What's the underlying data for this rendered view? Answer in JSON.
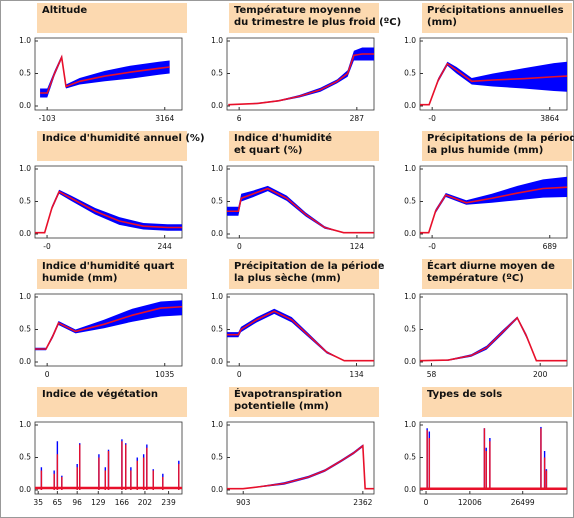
{
  "chart_data": [
    {
      "type": "line",
      "title": [
        "Altitude"
      ],
      "x": [
        -300,
        -100,
        100,
        300,
        420,
        800,
        1500,
        2200,
        3000,
        3300
      ],
      "values": [
        0.2,
        0.2,
        0.5,
        0.75,
        0.3,
        0.38,
        0.46,
        0.52,
        0.58,
        0.6
      ],
      "band_low": [
        0.13,
        0.13,
        0.46,
        0.72,
        0.27,
        0.33,
        0.38,
        0.42,
        0.48,
        0.5
      ],
      "band_high": [
        0.27,
        0.27,
        0.54,
        0.78,
        0.33,
        0.43,
        0.54,
        0.62,
        0.68,
        0.7
      ],
      "xlim": [
        -441,
        3643
      ],
      "xticks": [
        -103,
        3164
      ],
      "ylim": [
        0,
        1
      ],
      "yticks": [
        {
          "value": 0,
          "label": "0.0"
        },
        {
          "value": 0.5,
          "label": "0.5"
        },
        {
          "value": 1,
          "label": "1.0"
        }
      ],
      "color": "#e8102a",
      "band_color": "#0000ff"
    },
    {
      "type": "line",
      "title": [
        "Température moyenne",
        "du trimestre le plus froid (ºC)"
      ],
      "x": [
        -20,
        50,
        100,
        150,
        200,
        240,
        265,
        280,
        300,
        328
      ],
      "values": [
        0.02,
        0.04,
        0.08,
        0.15,
        0.25,
        0.38,
        0.5,
        0.78,
        0.8,
        0.8
      ],
      "band_low": [
        0.02,
        0.03,
        0.07,
        0.13,
        0.22,
        0.35,
        0.45,
        0.7,
        0.7,
        0.7
      ],
      "band_high": [
        0.02,
        0.05,
        0.09,
        0.17,
        0.28,
        0.41,
        0.55,
        0.85,
        0.9,
        0.9
      ],
      "xlim": [
        -23,
        328
      ],
      "xticks": [
        6,
        287
      ],
      "ylim": [
        0,
        1
      ],
      "yticks": [
        {
          "value": 0,
          "label": "0.0"
        },
        {
          "value": 0.5,
          "label": "0.5"
        },
        {
          "value": 1,
          "label": "1.0"
        }
      ],
      "color": "#e8102a",
      "band_color": "#0000ff"
    },
    {
      "type": "line",
      "title": [
        "Précipitations annuelles",
        "(mm)"
      ],
      "x": [
        -400,
        -100,
        200,
        500,
        800,
        1300,
        2000,
        3000,
        4000,
        4430
      ],
      "values": [
        0.02,
        0.02,
        0.4,
        0.65,
        0.55,
        0.38,
        0.4,
        0.42,
        0.45,
        0.46
      ],
      "band_low": [
        0.02,
        0.02,
        0.37,
        0.62,
        0.5,
        0.33,
        0.3,
        0.27,
        0.23,
        0.22
      ],
      "band_high": [
        0.02,
        0.02,
        0.43,
        0.68,
        0.6,
        0.43,
        0.5,
        0.58,
        0.66,
        0.68
      ],
      "xlim": [
        -400,
        4430
      ],
      "xticks": [
        {
          "value": 0,
          "label": "-0"
        },
        3864
      ],
      "ylim": [
        0,
        1
      ],
      "yticks": [
        {
          "value": 0,
          "label": "0.0"
        },
        {
          "value": 0.5,
          "label": "0.5"
        },
        {
          "value": 1,
          "label": "1.0"
        }
      ],
      "color": "#e8102a",
      "band_color": "#0000ff"
    },
    {
      "type": "line",
      "title": [
        "Indice d'humidité annuel (%)"
      ],
      "x": [
        -25,
        -5,
        10,
        25,
        50,
        100,
        150,
        200,
        250,
        280
      ],
      "values": [
        0.02,
        0.02,
        0.4,
        0.65,
        0.55,
        0.35,
        0.2,
        0.12,
        0.1,
        0.1
      ],
      "band_low": [
        0.02,
        0.02,
        0.37,
        0.62,
        0.51,
        0.3,
        0.14,
        0.07,
        0.05,
        0.05
      ],
      "band_high": [
        0.02,
        0.02,
        0.43,
        0.68,
        0.59,
        0.4,
        0.26,
        0.17,
        0.15,
        0.15
      ],
      "xlim": [
        -25,
        280
      ],
      "xticks": [
        {
          "value": 0,
          "label": "-0"
        },
        244
      ],
      "ylim": [
        0,
        1
      ],
      "yticks": [
        {
          "value": 0,
          "label": "0.0"
        },
        {
          "value": 0.5,
          "label": "0.5"
        },
        {
          "value": 1,
          "label": "1.0"
        }
      ],
      "color": "#e8102a",
      "band_color": "#0000ff"
    },
    {
      "type": "line",
      "title": [
        "Indice d'humidité",
        "et quart (%)"
      ],
      "x": [
        -13,
        -1,
        2,
        15,
        30,
        50,
        70,
        90,
        110,
        142
      ],
      "values": [
        0.35,
        0.35,
        0.55,
        0.62,
        0.7,
        0.55,
        0.3,
        0.1,
        0.02,
        0.02
      ],
      "band_low": [
        0.28,
        0.28,
        0.5,
        0.57,
        0.66,
        0.51,
        0.27,
        0.08,
        0.02,
        0.02
      ],
      "band_high": [
        0.42,
        0.42,
        0.62,
        0.67,
        0.74,
        0.59,
        0.33,
        0.12,
        0.02,
        0.02
      ],
      "xlim": [
        -13,
        142
      ],
      "xticks": [
        0,
        124
      ],
      "ylim": [
        0,
        1
      ],
      "yticks": [
        {
          "value": 0,
          "label": "0.0"
        },
        {
          "value": 0.5,
          "label": "0.5"
        },
        {
          "value": 1,
          "label": "1.0"
        }
      ],
      "color": "#e8102a",
      "band_color": "#0000ff"
    },
    {
      "type": "line",
      "title": [
        "Précipitations de la période",
        "la plus humide (mm)"
      ],
      "x": [
        -71,
        -20,
        20,
        80,
        200,
        350,
        500,
        650,
        790
      ],
      "values": [
        0.02,
        0.02,
        0.35,
        0.6,
        0.48,
        0.55,
        0.63,
        0.7,
        0.72
      ],
      "band_low": [
        0.02,
        0.02,
        0.32,
        0.57,
        0.45,
        0.48,
        0.52,
        0.56,
        0.57
      ],
      "band_high": [
        0.02,
        0.02,
        0.38,
        0.63,
        0.52,
        0.62,
        0.74,
        0.84,
        0.88
      ],
      "xlim": [
        -71,
        790
      ],
      "xticks": [
        {
          "value": 0,
          "label": "-0"
        },
        689
      ],
      "ylim": [
        0,
        1
      ],
      "yticks": [
        {
          "value": 0,
          "label": "0.0"
        },
        {
          "value": 0.5,
          "label": "0.5"
        },
        {
          "value": 1,
          "label": "1.0"
        }
      ],
      "color": "#e8102a",
      "band_color": "#0000ff"
    },
    {
      "type": "line",
      "title": [
        "Indice d'humidité quart",
        "humide (mm)"
      ],
      "x": [
        -107,
        -10,
        50,
        100,
        250,
        500,
        750,
        1000,
        1187
      ],
      "values": [
        0.2,
        0.2,
        0.4,
        0.6,
        0.47,
        0.58,
        0.72,
        0.83,
        0.85
      ],
      "band_low": [
        0.18,
        0.18,
        0.37,
        0.57,
        0.44,
        0.52,
        0.62,
        0.7,
        0.72
      ],
      "band_high": [
        0.22,
        0.22,
        0.43,
        0.63,
        0.5,
        0.65,
        0.82,
        0.93,
        0.95
      ],
      "xlim": [
        -107,
        1187
      ],
      "xticks": [
        0,
        1035
      ],
      "ylim": [
        0,
        1
      ],
      "yticks": [
        {
          "value": 0,
          "label": "0.0"
        },
        {
          "value": 0.5,
          "label": "0.5"
        },
        {
          "value": 1,
          "label": "1.0"
        }
      ],
      "color": "#e8102a",
      "band_color": "#0000ff"
    },
    {
      "type": "line",
      "title": [
        "Précipitation de la période",
        "la plus sèche (mm)"
      ],
      "x": [
        -14,
        -1,
        2,
        20,
        40,
        60,
        80,
        100,
        120,
        154
      ],
      "values": [
        0.42,
        0.42,
        0.5,
        0.65,
        0.78,
        0.65,
        0.4,
        0.15,
        0.02,
        0.02
      ],
      "band_low": [
        0.38,
        0.38,
        0.46,
        0.61,
        0.74,
        0.61,
        0.37,
        0.13,
        0.02,
        0.02
      ],
      "band_high": [
        0.46,
        0.46,
        0.54,
        0.69,
        0.82,
        0.69,
        0.43,
        0.17,
        0.02,
        0.02
      ],
      "xlim": [
        -14,
        154
      ],
      "xticks": [
        0,
        134
      ],
      "ylim": [
        0,
        1
      ],
      "yticks": [
        {
          "value": 0,
          "label": "0.0"
        },
        {
          "value": 0.5,
          "label": "0.5"
        },
        {
          "value": 1,
          "label": "1.0"
        }
      ],
      "color": "#e8102a",
      "band_color": "#0000ff"
    },
    {
      "type": "line",
      "title": [
        "Écart diurne moyen de",
        "température (ºC)"
      ],
      "x": [
        43,
        80,
        110,
        130,
        150,
        170,
        182,
        195,
        235
      ],
      "values": [
        0.02,
        0.03,
        0.1,
        0.22,
        0.45,
        0.68,
        0.4,
        0.02,
        0.02
      ],
      "band_low": [
        0.02,
        0.02,
        0.08,
        0.19,
        0.42,
        0.66,
        0.37,
        0.02,
        0.02
      ],
      "band_high": [
        0.02,
        0.04,
        0.12,
        0.25,
        0.48,
        0.7,
        0.43,
        0.02,
        0.02
      ],
      "xlim": [
        43,
        235
      ],
      "xticks": [
        58,
        200
      ],
      "ylim": [
        0,
        1
      ],
      "yticks": [
        {
          "value": 0,
          "label": "0.0"
        },
        {
          "value": 0.5,
          "label": "0.5"
        },
        {
          "value": 1,
          "label": "1.0"
        }
      ],
      "color": "#e8102a",
      "band_color": "#0000ff"
    },
    {
      "type": "bar",
      "title": [
        "Indice de végétation"
      ],
      "x": [
        40,
        60,
        65,
        72,
        96,
        100,
        130,
        140,
        145,
        166,
        172,
        180,
        190,
        200,
        205,
        215,
        230,
        255
      ],
      "series": [
        {
          "color": "#0000ff",
          "values": [
            0.35,
            0.3,
            0.75,
            0.22,
            0.4,
            0.72,
            0.55,
            0.35,
            0.62,
            0.78,
            0.72,
            0.35,
            0.5,
            0.55,
            0.7,
            0.32,
            0.25,
            0.45
          ]
        },
        {
          "color": "#e8102a",
          "values": [
            0.3,
            0.25,
            0.55,
            0.2,
            0.35,
            0.7,
            0.5,
            0.3,
            0.6,
            0.75,
            0.7,
            0.3,
            0.45,
            0.5,
            0.65,
            0.3,
            0.2,
            0.4
          ]
        }
      ],
      "baseline": 0.03,
      "xlim": [
        30,
        260
      ],
      "xticks": [
        35,
        65,
        96,
        129,
        166,
        202,
        239
      ],
      "ylim": [
        0,
        1
      ],
      "yticks": [
        {
          "value": 0,
          "label": "0.0"
        },
        {
          "value": 0.5,
          "label": "0.5"
        },
        {
          "value": 1,
          "label": "1.0"
        }
      ]
    },
    {
      "type": "line",
      "title": [
        "Évapotranspiration",
        "potentielle (mm)"
      ],
      "x": [
        705,
        900,
        1100,
        1400,
        1700,
        1900,
        2100,
        2250,
        2362,
        2390,
        2498
      ],
      "values": [
        0.02,
        0.02,
        0.05,
        0.1,
        0.2,
        0.3,
        0.45,
        0.57,
        0.68,
        0.02,
        0.02
      ],
      "band_low": [
        0.02,
        0.02,
        0.04,
        0.08,
        0.18,
        0.28,
        0.43,
        0.55,
        0.66,
        0.02,
        0.02
      ],
      "band_high": [
        0.02,
        0.02,
        0.06,
        0.12,
        0.22,
        0.32,
        0.47,
        0.59,
        0.7,
        0.02,
        0.02
      ],
      "xlim": [
        705,
        2498
      ],
      "xticks": [
        903,
        2362
      ],
      "ylim": [
        0,
        1
      ],
      "yticks": [
        {
          "value": 0,
          "label": "0.0"
        },
        {
          "value": 0.5,
          "label": "0.5"
        },
        {
          "value": 1,
          "label": "1.0"
        }
      ],
      "color": "#e8102a",
      "band_color": "#0000ff"
    },
    {
      "type": "bar",
      "title": [
        "Types de sols"
      ],
      "x": [
        300,
        900,
        16000,
        16500,
        17500,
        31500,
        32500,
        33000
      ],
      "series": [
        {
          "color": "#0000ff",
          "values": [
            0.95,
            0.9,
            0.95,
            0.65,
            0.8,
            0.97,
            0.6,
            0.32
          ]
        },
        {
          "color": "#e8102a",
          "values": [
            0.92,
            0.8,
            0.95,
            0.6,
            0.75,
            0.95,
            0.5,
            0.3
          ]
        }
      ],
      "baseline": 0.02,
      "xlim": [
        -1656,
        38643
      ],
      "xticks": [
        0,
        12006,
        26499
      ],
      "ylim": [
        0,
        1
      ],
      "yticks": [
        {
          "value": 0,
          "label": "0.0"
        },
        {
          "value": 0.5,
          "label": "0.5"
        },
        {
          "value": 1,
          "label": "1.0"
        }
      ]
    }
  ]
}
